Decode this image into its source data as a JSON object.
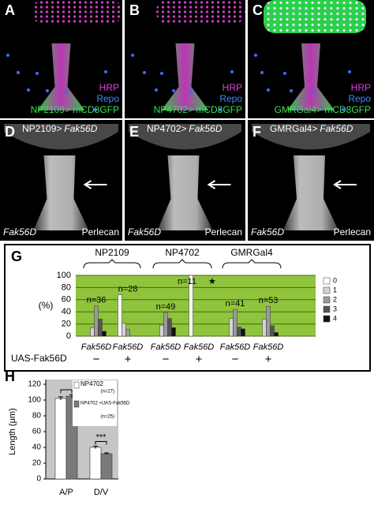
{
  "panels": [
    {
      "letter": "A",
      "stain1": "HRP",
      "stain2": "Repo",
      "driver": "NP2109> mCD8GFP"
    },
    {
      "letter": "B",
      "stain1": "HRP",
      "stain2": "Repo",
      "driver": "NP4702> mCD8GFP"
    },
    {
      "letter": "C",
      "stain1": "HRP",
      "stain2": "Repo",
      "driver": "GMRGal4> mCD8GFP"
    },
    {
      "letter": "D",
      "driver": "NP2109>",
      "gene": "Fak56D",
      "genotype": "Fak56D",
      "stain": "Perlecan"
    },
    {
      "letter": "E",
      "driver": "NP4702>",
      "gene": "Fak56D",
      "genotype": "Fak56D",
      "stain": "Perlecan"
    },
    {
      "letter": "F",
      "driver": "GMRGal4>",
      "gene": "Fak56D",
      "genotype": "Fak56D",
      "stain": "Perlecan"
    }
  ],
  "chart_data": [
    {
      "type": "bar",
      "letter": "G",
      "y_label": "(%)",
      "groups": [
        "NP2109",
        "NP4702",
        "GMRGal4"
      ],
      "categories": [
        "Fak56D",
        "Fak56D",
        "Fak56D",
        "Fak56D",
        "Fak56D",
        "Fak56D"
      ],
      "row_label": "UAS-Fak56D",
      "row_values": [
        "−",
        "+",
        "−",
        "+",
        "−",
        "+"
      ],
      "annotations": [
        "n=36",
        "n=28",
        "n=49",
        "n=11",
        "n=41",
        "n=53"
      ],
      "marker": "★",
      "background": "#8fc43c",
      "grid": true,
      "ylim": [
        0,
        100
      ],
      "yticks": [
        0,
        20,
        40,
        60,
        80,
        100
      ],
      "series": [
        {
          "name": "0",
          "color": "#ffffff",
          "values": [
            0,
            68,
            0,
            100,
            0,
            0
          ]
        },
        {
          "name": "1",
          "color": "#d4d4d4",
          "values": [
            14,
            21,
            18,
            0,
            29,
            28
          ]
        },
        {
          "name": "2",
          "color": "#9a9a9a",
          "values": [
            50,
            11,
            39,
            0,
            44,
            49
          ]
        },
        {
          "name": "3",
          "color": "#555555",
          "values": [
            28,
            0,
            29,
            0,
            15,
            17
          ]
        },
        {
          "name": "4",
          "color": "#111111",
          "values": [
            8,
            0,
            14,
            0,
            12,
            6
          ]
        }
      ]
    },
    {
      "type": "bar",
      "letter": "H",
      "y_label": "Length (μm)",
      "categories": [
        "A/P",
        "D/V"
      ],
      "significance": "***",
      "background": "#c6c6c6",
      "ylim": [
        0,
        120
      ],
      "yticks": [
        0,
        20,
        40,
        60,
        80,
        100,
        120
      ],
      "series": [
        {
          "name": "NP4702",
          "note": "(n=27)",
          "color": "#ffffff",
          "values": [
            102,
            40
          ],
          "errors": [
            2,
            1.5
          ]
        },
        {
          "name": "NP4702 +UAS-Fak56D",
          "note": "(n=25)",
          "color": "#7a7a7a",
          "values": [
            105,
            32
          ],
          "errors": [
            2,
            1
          ]
        }
      ]
    }
  ]
}
